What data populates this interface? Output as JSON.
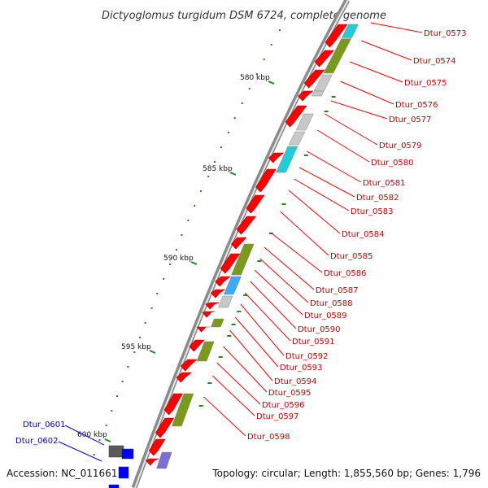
{
  "title": "Dictyoglomus turgidum DSM 6724, complete genome",
  "accession": "Accession: NC_011661",
  "topology": "Topology: circular; Length: 1,855,560 bp; Genes: 1,796",
  "kbp_marks": [
    "580 kbp",
    "585 kbp",
    "590 kbp",
    "595 kbp",
    "600 kbp"
  ],
  "labels_red": [
    "Dtur_0573",
    "Dtur_0574",
    "Dtur_0575",
    "Dtur_0576",
    "Dtur_0577",
    "Dtur_0579",
    "Dtur_0580",
    "Dtur_0581",
    "Dtur_0582",
    "Dtur_0583",
    "Dtur_0584",
    "Dtur_0585",
    "Dtur_0586",
    "Dtur_0587",
    "Dtur_0588",
    "Dtur_0589",
    "Dtur_0590",
    "Dtur_0591",
    "Dtur_0592",
    "Dtur_0593",
    "Dtur_0594",
    "Dtur_0595",
    "Dtur_0596",
    "Dtur_0597",
    "Dtur_0598"
  ],
  "labels_blue": [
    "Dtur_0601",
    "Dtur_0602"
  ],
  "colors": {
    "cds": "#ff0000",
    "cog_green": "#7a9a1e",
    "cog_grey": "#c8c8c8",
    "cog_cyan": "#22cbd8",
    "cog_blue": "#3fa9f5",
    "cog_purple": "#7b6fd6",
    "cog_dark": "#5a5a5a",
    "reverse_cds": "#0000ff",
    "label_red": "#cc0000",
    "label_blue": "#0000cc",
    "gc_dots": "#1e8a1e"
  }
}
